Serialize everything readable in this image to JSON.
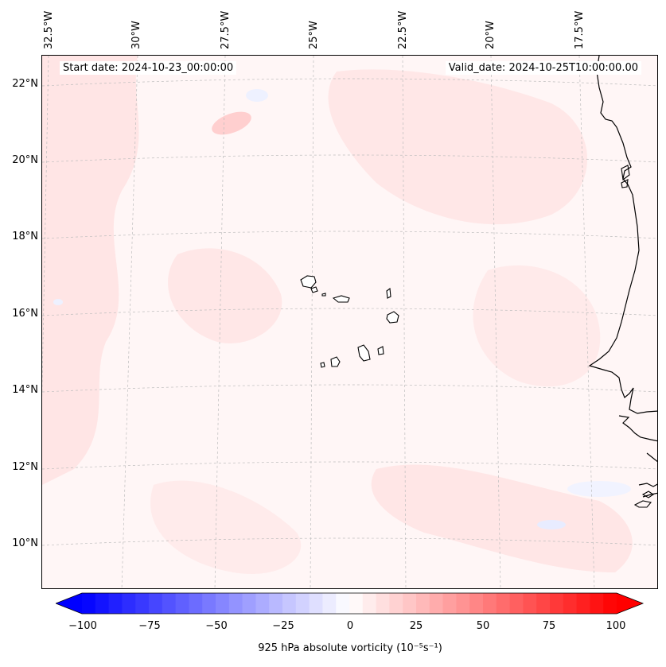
{
  "map": {
    "info": {
      "start_date": "Start date: 2024-10-23_00:00:00",
      "valid_date": "Valid_date: 2024-10-25T10:00:00.00"
    },
    "longitude_labels": [
      "32.5°W",
      "30°W",
      "27.5°W",
      "25°W",
      "22.5°W",
      "20°W",
      "17.5°W"
    ],
    "latitude_labels": [
      "22°N",
      "20°N",
      "18°N",
      "16°N",
      "14°N",
      "12°N",
      "10°N"
    ],
    "colors": {
      "coastline": "#000000",
      "gridline": "#bdbdbd",
      "background_field": "#fff6f6",
      "positive_anomaly": "#ffe1e1",
      "negative_anomaly": "#eef1ff"
    }
  },
  "colorbar": {
    "label": "925 hPa absolute vorticity (10⁻⁵s⁻¹)",
    "ticks": [
      "−100",
      "−75",
      "−50",
      "−25",
      "0",
      "25",
      "50",
      "75",
      "100"
    ],
    "min": -100,
    "max": 100,
    "levels": 41,
    "colors": {
      "min": "#0000ff",
      "mid": "#ffffff",
      "max": "#ff0000"
    }
  }
}
